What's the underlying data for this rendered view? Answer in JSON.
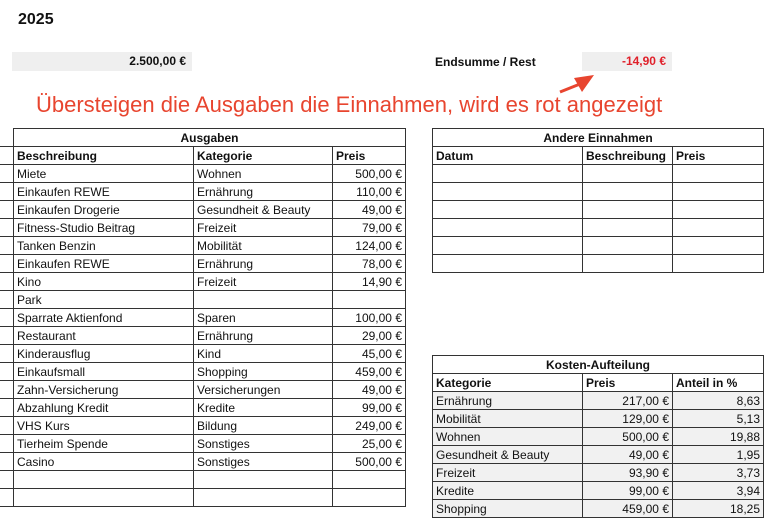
{
  "year": "2025",
  "income_total": "2.500,00 €",
  "endsumme_label": "Endsumme / Rest",
  "endsumme_value": "-14,90 €",
  "colors": {
    "negative": "#e0202a",
    "annotation": "#e8452f",
    "cell_shade": "#efefef"
  },
  "ausgaben": {
    "title": "Ausgaben",
    "headers": [
      "Beschreibung",
      "Kategorie",
      "Preis"
    ],
    "rows": [
      [
        "Miete",
        "Wohnen",
        "500,00 €"
      ],
      [
        "Einkaufen REWE",
        "Ernährung",
        "110,00 €"
      ],
      [
        "Einkaufen Drogerie",
        "Gesundheit & Beauty",
        "49,00 €"
      ],
      [
        "Fitness-Studio Beitrag",
        "Freizeit",
        "79,00 €"
      ],
      [
        "Tanken Benzin",
        "Mobilität",
        "124,00 €"
      ],
      [
        "Einkaufen REWE",
        "Ernährung",
        "78,00 €"
      ],
      [
        "Kino",
        "Freizeit",
        "14,90 €"
      ],
      [
        "Park",
        "",
        ""
      ],
      [
        "Sparrate Aktienfond",
        "Sparen",
        "100,00 €"
      ],
      [
        "Restaurant",
        "Ernährung",
        "29,00 €"
      ],
      [
        "Kinderausflug",
        "Kind",
        "45,00 €"
      ],
      [
        "Einkaufsmall",
        "Shopping",
        "459,00 €"
      ],
      [
        "Zahn-Versicherung",
        "Versicherungen",
        "49,00 €"
      ],
      [
        "Abzahlung Kredit",
        "Kredite",
        "99,00 €"
      ],
      [
        "VHS Kurs",
        "Bildung",
        "249,00 €"
      ],
      [
        "Tierheim Spende",
        "Sonstiges",
        "25,00 €"
      ],
      [
        "Casino",
        "Sonstiges",
        "500,00 €"
      ],
      [
        "",
        "",
        ""
      ],
      [
        "",
        "",
        ""
      ]
    ]
  },
  "andere_einnahmen": {
    "title": "Andere Einnahmen",
    "headers": [
      "Datum",
      "Beschreibung",
      "Preis"
    ],
    "rows": [
      [
        "",
        "",
        ""
      ],
      [
        "",
        "",
        ""
      ],
      [
        "",
        "",
        ""
      ],
      [
        "",
        "",
        ""
      ],
      [
        "",
        "",
        ""
      ],
      [
        "",
        "",
        ""
      ]
    ]
  },
  "kosten_aufteilung": {
    "title": "Kosten-Aufteilung",
    "headers": [
      "Kategorie",
      "Preis",
      "Anteil in %"
    ],
    "rows": [
      [
        "Ernährung",
        "217,00 €",
        "8,63"
      ],
      [
        "Mobilität",
        "129,00 €",
        "5,13"
      ],
      [
        "Wohnen",
        "500,00 €",
        "19,88"
      ],
      [
        "Gesundheit & Beauty",
        "49,00 €",
        "1,95"
      ],
      [
        "Freizeit",
        "93,90 €",
        "3,73"
      ],
      [
        "Kredite",
        "99,00 €",
        "3,94"
      ],
      [
        "Shopping",
        "459,00 €",
        "18,25"
      ]
    ]
  },
  "annotation": "Übersteigen die Ausgaben die Einnahmen, wird es rot angezeigt"
}
